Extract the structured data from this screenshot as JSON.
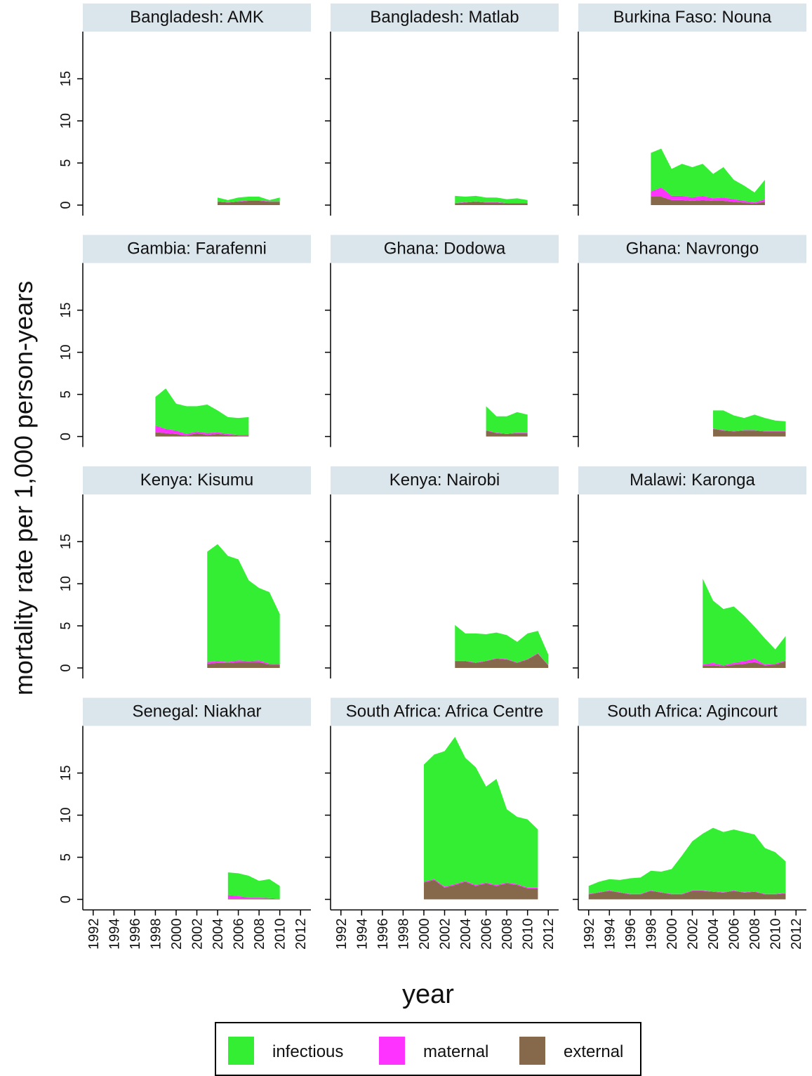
{
  "chart_data": {
    "type": "area",
    "stacked": true,
    "ylabel": "mortality rate per 1,000 person-years",
    "xlabel": "year",
    "xlim": [
      1991,
      2013
    ],
    "xticks": [
      1992,
      1994,
      1996,
      1998,
      2000,
      2002,
      2004,
      2006,
      2008,
      2010,
      2012
    ],
    "ylim": [
      -1.25,
      20.6
    ],
    "yticks": [
      0,
      5,
      10,
      15
    ],
    "legend": [
      {
        "name": "infectious",
        "color": "#33ee33"
      },
      {
        "name": "maternal",
        "color": "#ff33ff"
      },
      {
        "name": "external",
        "color": "#86694a"
      }
    ],
    "panels": [
      {
        "title": "Bangladesh: AMK",
        "x": [
          2004,
          2005,
          2006,
          2007,
          2008,
          2009,
          2010
        ],
        "series": [
          {
            "values": [
              0.45,
              0.25,
              0.45,
              0.45,
              0.45,
              0.15,
              0.45
            ]
          },
          {
            "values": [
              0.05,
              0.05,
              0.05,
              0.05,
              0.05,
              0.05,
              0.05
            ]
          },
          {
            "values": [
              0.4,
              0.3,
              0.4,
              0.5,
              0.5,
              0.4,
              0.4
            ]
          }
        ]
      },
      {
        "title": "Bangladesh: Matlab",
        "x": [
          2003,
          2004,
          2005,
          2006,
          2007,
          2008,
          2009,
          2010
        ],
        "series": [
          {
            "values": [
              0.85,
              0.65,
              0.65,
              0.55,
              0.55,
              0.45,
              0.55,
              0.35
            ]
          },
          {
            "values": [
              0.05,
              0.05,
              0.05,
              0.05,
              0.05,
              0.05,
              0.05,
              0.05
            ]
          },
          {
            "values": [
              0.2,
              0.3,
              0.4,
              0.3,
              0.3,
              0.2,
              0.2,
              0.2
            ]
          }
        ]
      },
      {
        "title": "Burkina Faso: Nouna",
        "x": [
          1998,
          1999,
          2000,
          2001,
          2002,
          2003,
          2004,
          2005,
          2006,
          2007,
          2008,
          2009
        ],
        "series": [
          {
            "values": [
              4.6,
              4.6,
              3.2,
              3.8,
              3.6,
              3.8,
              2.9,
              3.6,
              2.3,
              1.8,
              1.2,
              2.3
            ]
          },
          {
            "values": [
              0.6,
              1.1,
              0.5,
              0.5,
              0.4,
              0.5,
              0.3,
              0.4,
              0.3,
              0.2,
              0.1,
              0.3
            ]
          },
          {
            "values": [
              1.0,
              1.0,
              0.6,
              0.6,
              0.5,
              0.6,
              0.5,
              0.5,
              0.4,
              0.3,
              0.2,
              0.4
            ]
          }
        ]
      },
      {
        "title": "Gambia: Farafenni",
        "x": [
          1998,
          1999,
          2000,
          2001,
          2002,
          2003,
          2004,
          2005,
          2006,
          2007
        ],
        "series": [
          {
            "values": [
              3.4,
              4.8,
              3.2,
              3.3,
              3.0,
              3.4,
              2.6,
              2.0,
              2.0,
              2.1
            ]
          },
          {
            "values": [
              0.8,
              0.5,
              0.4,
              0.2,
              0.2,
              0.2,
              0.2,
              0.1,
              0.1,
              0.1
            ]
          },
          {
            "values": [
              0.5,
              0.4,
              0.3,
              0.1,
              0.4,
              0.2,
              0.3,
              0.2,
              0.1,
              0.1
            ]
          }
        ]
      },
      {
        "title": "Ghana: Dodowa",
        "x": [
          2006,
          2007,
          2008,
          2009,
          2010
        ],
        "series": [
          {
            "values": [
              2.85,
              1.95,
              2.05,
              2.45,
              2.15
            ]
          },
          {
            "values": [
              0.05,
              0.05,
              0.05,
              0.05,
              0.05
            ]
          },
          {
            "values": [
              0.7,
              0.4,
              0.3,
              0.4,
              0.4
            ]
          }
        ]
      },
      {
        "title": "Ghana: Navrongo",
        "x": [
          2004,
          2005,
          2006,
          2007,
          2008,
          2009,
          2010,
          2011
        ],
        "series": [
          {
            "values": [
              2.15,
              2.35,
              1.85,
              1.45,
              1.85,
              1.55,
              1.25,
              1.15
            ]
          },
          {
            "values": [
              0.05,
              0.05,
              0.05,
              0.05,
              0.05,
              0.05,
              0.05,
              0.05
            ]
          },
          {
            "values": [
              0.9,
              0.7,
              0.6,
              0.7,
              0.7,
              0.6,
              0.6,
              0.6
            ]
          }
        ]
      },
      {
        "title": "Kenya: Kisumu",
        "x": [
          2003,
          2004,
          2005,
          2006,
          2007,
          2008,
          2009,
          2010
        ],
        "series": [
          {
            "values": [
              13.1,
              13.9,
              12.6,
              12.0,
              9.6,
              8.6,
              8.5,
              5.95
            ]
          },
          {
            "values": [
              0.2,
              0.2,
              0.1,
              0.2,
              0.1,
              0.2,
              0.1,
              0.05
            ]
          },
          {
            "values": [
              0.5,
              0.6,
              0.6,
              0.7,
              0.7,
              0.7,
              0.4,
              0.4
            ]
          }
        ]
      },
      {
        "title": "Kenya: Nairobi",
        "x": [
          2003,
          2004,
          2005,
          2006,
          2007,
          2008,
          2009,
          2010,
          2011,
          2012
        ],
        "series": [
          {
            "values": [
              4.25,
              3.25,
              3.45,
              3.15,
              3.05,
              2.85,
              2.45,
              3.05,
              2.65,
              1.25
            ]
          },
          {
            "values": [
              0.05,
              0.05,
              0.05,
              0.05,
              0.05,
              0.05,
              0.05,
              0.05,
              0.05,
              0.05
            ]
          },
          {
            "values": [
              0.8,
              0.8,
              0.6,
              0.8,
              1.1,
              1.0,
              0.6,
              1.0,
              1.7,
              0.3
            ]
          }
        ]
      },
      {
        "title": "Malawi: Karonga",
        "x": [
          2003,
          2004,
          2005,
          2006,
          2007,
          2008,
          2009,
          2010,
          2011
        ],
        "series": [
          {
            "values": [
              10.2,
              7.4,
              6.7,
              6.7,
              5.4,
              3.8,
              3.1,
              1.7,
              2.9
            ]
          },
          {
            "values": [
              0.1,
              0.3,
              0.1,
              0.2,
              0.3,
              0.4,
              0.1,
              0.1,
              0.1
            ]
          },
          {
            "values": [
              0.3,
              0.3,
              0.2,
              0.4,
              0.5,
              0.7,
              0.3,
              0.4,
              0.8
            ]
          }
        ]
      },
      {
        "title": "Senegal: Niakhar",
        "x": [
          2005,
          2006,
          2007,
          2008,
          2009,
          2010
        ],
        "series": [
          {
            "values": [
              2.7,
              2.7,
              2.6,
              2.0,
              2.25,
              1.53
            ]
          },
          {
            "values": [
              0.4,
              0.3,
              0.1,
              0.1,
              0.05,
              0.02
            ]
          },
          {
            "values": [
              0.1,
              0.1,
              0.1,
              0.1,
              0.1,
              0.05
            ]
          }
        ]
      },
      {
        "title": "South Africa: Africa Centre",
        "x": [
          2000,
          2001,
          2002,
          2003,
          2004,
          2005,
          2006,
          2007,
          2008,
          2009,
          2010,
          2011
        ],
        "series": [
          {
            "values": [
              13.9,
              14.8,
              16.1,
              17.5,
              14.6,
              14.0,
              11.4,
              12.6,
              8.7,
              8.0,
              8.1,
              6.9
            ]
          },
          {
            "values": [
              0.1,
              0.1,
              0.1,
              0.1,
              0.1,
              0.1,
              0.1,
              0.1,
              0.1,
              0.1,
              0.1,
              0.1
            ]
          },
          {
            "values": [
              2.0,
              2.3,
              1.4,
              1.7,
              2.1,
              1.6,
              1.9,
              1.6,
              1.9,
              1.7,
              1.3,
              1.3
            ]
          }
        ]
      },
      {
        "title": "South Africa: Agincourt",
        "x": [
          1992,
          1993,
          1994,
          1995,
          1996,
          1997,
          1998,
          1999,
          2000,
          2001,
          2002,
          2003,
          2004,
          2005,
          2006,
          2007,
          2008,
          2009,
          2010,
          2011
        ],
        "series": [
          {
            "values": [
              0.95,
              1.25,
              1.35,
              1.45,
              1.85,
              1.95,
              2.35,
              2.45,
              2.95,
              4.55,
              5.85,
              6.75,
              7.55,
              7.15,
              7.25,
              7.15,
              6.75,
              5.45,
              4.95,
              3.75
            ]
          },
          {
            "values": [
              0.05,
              0.05,
              0.05,
              0.05,
              0.05,
              0.05,
              0.05,
              0.05,
              0.05,
              0.05,
              0.05,
              0.05,
              0.05,
              0.05,
              0.05,
              0.05,
              0.05,
              0.05,
              0.05,
              0.05
            ]
          },
          {
            "values": [
              0.6,
              0.8,
              1.0,
              0.8,
              0.6,
              0.6,
              1.0,
              0.8,
              0.6,
              0.6,
              1.0,
              1.0,
              0.9,
              0.8,
              1.0,
              0.8,
              0.9,
              0.6,
              0.6,
              0.7
            ]
          }
        ]
      }
    ]
  }
}
